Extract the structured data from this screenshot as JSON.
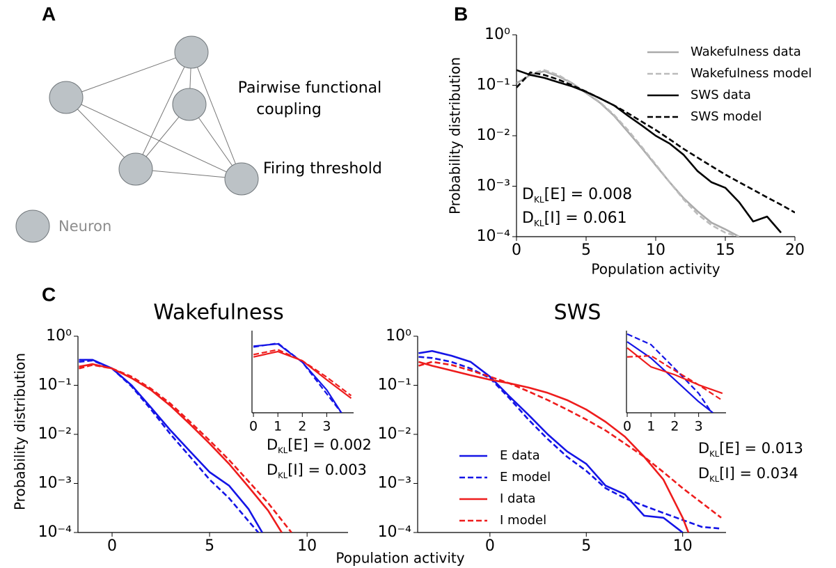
{
  "panel_labels": [
    "A",
    "B",
    "C"
  ],
  "diagram": {
    "annotations": [
      "Pairwise functional",
      "coupling",
      "Firing threshold"
    ],
    "legend": "Neuron"
  },
  "panel_c": {
    "xlabel": "Population activity",
    "ylabel": "Probability distribution"
  },
  "chart_data": [
    {
      "type": "line",
      "yscale": "log",
      "xlabel": "Population activity",
      "ylabel": "Probability distribution",
      "xlim": [
        0,
        20
      ],
      "ylim": [
        0.0001,
        1
      ],
      "xticks": [
        0,
        5,
        10,
        15,
        20
      ],
      "yticks": [
        {
          "value": 1,
          "label": "10⁰"
        },
        {
          "value": 0.1,
          "label": "10⁻¹"
        },
        {
          "value": 0.01,
          "label": "10⁻²"
        },
        {
          "value": 0.001,
          "label": "10⁻³"
        },
        {
          "value": 0.0001,
          "label": "10⁻⁴"
        }
      ],
      "legend": "upper right",
      "annotations": [
        {
          "main": "D",
          "sub": "KL",
          "rest": "[E] = 0.008"
        },
        {
          "main": "D",
          "sub": "KL",
          "rest": "[I] = 0.061"
        }
      ],
      "series": [
        {
          "name": "Wakefulness data",
          "color": "#aaaaaa",
          "dash": false,
          "x": [
            0,
            1,
            2,
            3,
            4,
            5,
            6,
            7,
            8,
            9,
            10,
            11,
            12,
            13,
            14,
            15,
            16
          ],
          "values": [
            0.11,
            0.16,
            0.19,
            0.15,
            0.11,
            0.07,
            0.045,
            0.025,
            0.012,
            0.0057,
            0.0026,
            0.0012,
            0.00058,
            0.00032,
            0.00019,
            0.00014,
            0.0001
          ]
        },
        {
          "name": "Wakefulness model",
          "color": "#bbbbbb",
          "dash": true,
          "x": [
            0,
            1,
            2,
            3,
            4,
            5,
            6,
            7,
            8,
            9,
            10,
            11,
            12,
            13,
            14,
            15,
            16
          ],
          "values": [
            0.09,
            0.17,
            0.2,
            0.16,
            0.11,
            0.072,
            0.046,
            0.026,
            0.013,
            0.006,
            0.0027,
            0.0012,
            0.00055,
            0.00028,
            0.00017,
            0.00012,
            0.0001
          ]
        },
        {
          "name": "SWS data",
          "color": "#000000",
          "dash": false,
          "x": [
            0,
            1,
            2,
            3,
            4,
            5,
            6,
            7,
            8,
            9,
            10,
            11,
            12,
            13,
            14,
            15,
            16,
            17,
            18,
            19
          ],
          "values": [
            0.2,
            0.16,
            0.14,
            0.115,
            0.095,
            0.074,
            0.055,
            0.04,
            0.025,
            0.016,
            0.01,
            0.007,
            0.0042,
            0.002,
            0.0012,
            0.00093,
            0.00048,
            0.0002,
            0.00025,
            0.00012
          ]
        },
        {
          "name": "SWS model",
          "color": "#000000",
          "dash": true,
          "x": [
            0,
            1,
            2,
            3,
            4,
            5,
            6,
            7,
            8,
            9,
            10,
            11,
            12,
            13,
            14,
            15,
            16,
            17,
            18,
            19,
            20
          ],
          "values": [
            0.09,
            0.18,
            0.16,
            0.13,
            0.1,
            0.075,
            0.055,
            0.04,
            0.028,
            0.019,
            0.013,
            0.0085,
            0.0055,
            0.0037,
            0.0025,
            0.0017,
            0.0012,
            0.00085,
            0.0006,
            0.00043,
            0.0003
          ]
        }
      ]
    },
    {
      "type": "line",
      "yscale": "log",
      "title": "Wakefulness",
      "xlim": [
        -1.75,
        12.1
      ],
      "ylim": [
        0.0001,
        1
      ],
      "xticks": [
        0,
        5,
        10
      ],
      "yticks": [
        {
          "value": 1,
          "label": "10⁰"
        },
        {
          "value": 0.1,
          "label": "10⁻¹"
        },
        {
          "value": 0.01,
          "label": "10⁻²"
        },
        {
          "value": 0.001,
          "label": "10⁻³"
        },
        {
          "value": 0.0001,
          "label": "10⁻⁴"
        }
      ],
      "annotations": [
        {
          "main": "D",
          "sub": "KL",
          "rest": "[E] = 0.002"
        },
        {
          "main": "D",
          "sub": "KL",
          "rest": "[I] = 0.003"
        }
      ],
      "series": [
        {
          "color": "#1414e6",
          "dash": false,
          "x": [
            -1.7,
            -1,
            0,
            1,
            2,
            3,
            4,
            5,
            6,
            7,
            7.7
          ],
          "values": [
            0.33,
            0.33,
            0.22,
            0.1,
            0.035,
            0.012,
            0.0045,
            0.0017,
            0.0009,
            0.0003,
            0.0001
          ]
        },
        {
          "color": "#1414e6",
          "dash": true,
          "x": [
            -1.7,
            -1,
            0,
            1,
            2,
            3,
            4,
            5,
            6,
            7,
            7.5
          ],
          "values": [
            0.3,
            0.32,
            0.22,
            0.095,
            0.032,
            0.01,
            0.0035,
            0.0012,
            0.0005,
            0.00017,
            0.0001
          ]
        },
        {
          "color": "#ee1c1c",
          "dash": false,
          "x": [
            -1.7,
            -1,
            0,
            1,
            2,
            3,
            4,
            5,
            6,
            7,
            8,
            8.7
          ],
          "values": [
            0.24,
            0.27,
            0.22,
            0.14,
            0.08,
            0.038,
            0.016,
            0.0065,
            0.0025,
            0.00085,
            0.00028,
            0.0001
          ]
        },
        {
          "color": "#ee1c1c",
          "dash": true,
          "x": [
            -1.7,
            -1,
            0,
            1,
            2,
            3,
            4,
            5,
            6,
            7,
            8,
            9.2
          ],
          "values": [
            0.22,
            0.26,
            0.22,
            0.15,
            0.085,
            0.042,
            0.018,
            0.0075,
            0.003,
            0.0011,
            0.0004,
            0.0001
          ]
        }
      ]
    },
    {
      "type": "line",
      "yscale": "log",
      "xlim": [
        -0.06,
        4.1
      ],
      "ylim": [
        0.03,
        0.6
      ],
      "xticks": [
        0,
        1,
        2,
        3
      ],
      "series": [
        {
          "color": "#1414e6",
          "dash": false,
          "x": [
            0,
            1,
            2,
            3,
            3.6
          ],
          "values": [
            0.34,
            0.37,
            0.19,
            0.069,
            0.03
          ]
        },
        {
          "color": "#1414e6",
          "dash": true,
          "x": [
            0,
            1,
            2,
            3,
            3.6
          ],
          "values": [
            0.33,
            0.38,
            0.19,
            0.06,
            0.03
          ]
        },
        {
          "color": "#ee1c1c",
          "dash": false,
          "x": [
            0,
            1,
            2,
            3,
            4
          ],
          "values": [
            0.23,
            0.28,
            0.2,
            0.1,
            0.051
          ]
        },
        {
          "color": "#ee1c1c",
          "dash": true,
          "x": [
            0,
            1,
            2,
            3,
            4
          ],
          "values": [
            0.25,
            0.3,
            0.2,
            0.11,
            0.056
          ]
        }
      ]
    },
    {
      "type": "line",
      "yscale": "log",
      "title": "SWS",
      "xlim": [
        -3.75,
        12.25
      ],
      "ylim": [
        0.0001,
        1
      ],
      "xticks": [
        0,
        5,
        10
      ],
      "yticks": [
        {
          "value": 1,
          "label": "10⁰"
        },
        {
          "value": 0.1,
          "label": "10⁻¹"
        },
        {
          "value": 0.01,
          "label": "10⁻²"
        },
        {
          "value": 0.001,
          "label": "10⁻³"
        },
        {
          "value": 0.0001,
          "label": "10⁻⁴"
        }
      ],
      "legend": "lower left",
      "annotations": [
        {
          "main": "D",
          "sub": "KL",
          "rest": "[E] = 0.013"
        },
        {
          "main": "D",
          "sub": "KL",
          "rest": "[I] = 0.034"
        }
      ],
      "series": [
        {
          "name": "E data",
          "color": "#1414e6",
          "dash": false,
          "x": [
            -3.7,
            -3,
            -2,
            -1,
            0,
            1,
            2,
            3,
            4,
            5,
            6,
            7,
            8,
            9,
            10
          ],
          "values": [
            0.45,
            0.5,
            0.4,
            0.3,
            0.15,
            0.06,
            0.025,
            0.01,
            0.0045,
            0.0025,
            0.0009,
            0.0006,
            0.00022,
            0.0002,
            0.0001
          ]
        },
        {
          "name": "E model",
          "color": "#1414e6",
          "dash": true,
          "x": [
            -3.7,
            -3,
            -2,
            -1,
            0,
            1,
            2,
            3,
            4,
            5,
            6,
            7,
            8,
            9,
            10,
            11,
            12
          ],
          "values": [
            0.38,
            0.36,
            0.3,
            0.22,
            0.14,
            0.055,
            0.02,
            0.008,
            0.0035,
            0.0018,
            0.0008,
            0.0005,
            0.00035,
            0.00025,
            0.00018,
            0.00013,
            0.00012
          ]
        },
        {
          "name": "I data",
          "color": "#ee1c1c",
          "dash": false,
          "x": [
            -3.7,
            -3,
            -2,
            -1,
            0,
            1,
            2,
            3,
            4,
            5,
            6,
            7,
            8,
            9,
            10,
            10.3
          ],
          "values": [
            0.3,
            0.25,
            0.2,
            0.16,
            0.13,
            0.11,
            0.09,
            0.07,
            0.05,
            0.032,
            0.018,
            0.009,
            0.0035,
            0.0012,
            0.0002,
            0.0001
          ]
        },
        {
          "name": "I model",
          "color": "#ee1c1c",
          "dash": true,
          "x": [
            -3.7,
            -3,
            -2,
            -1,
            0,
            1,
            2,
            3,
            4,
            5,
            6,
            7,
            8,
            9,
            10,
            11,
            12
          ],
          "values": [
            0.25,
            0.3,
            0.26,
            0.2,
            0.15,
            0.11,
            0.075,
            0.05,
            0.032,
            0.02,
            0.012,
            0.0065,
            0.0035,
            0.0017,
            0.0008,
            0.0004,
            0.0002
          ]
        }
      ]
    },
    {
      "type": "line",
      "yscale": "log",
      "xlim": [
        -0.03,
        4.15
      ],
      "ylim": [
        0.03,
        0.6
      ],
      "xticks": [
        0,
        1,
        2,
        3
      ],
      "series": [
        {
          "color": "#1414e6",
          "dash": false,
          "x": [
            0,
            1,
            2,
            3,
            3.6
          ],
          "values": [
            0.4,
            0.22,
            0.1,
            0.045,
            0.03
          ]
        },
        {
          "color": "#1414e6",
          "dash": true,
          "x": [
            0,
            1,
            2,
            3,
            3.5
          ],
          "values": [
            0.53,
            0.36,
            0.15,
            0.061,
            0.032
          ]
        },
        {
          "color": "#ee1c1c",
          "dash": false,
          "x": [
            0,
            1,
            2,
            3,
            4
          ],
          "values": [
            0.32,
            0.16,
            0.12,
            0.083,
            0.061
          ]
        },
        {
          "color": "#ee1c1c",
          "dash": true,
          "x": [
            0,
            1,
            2,
            3,
            4
          ],
          "values": [
            0.23,
            0.24,
            0.14,
            0.083,
            0.047
          ]
        }
      ]
    }
  ]
}
